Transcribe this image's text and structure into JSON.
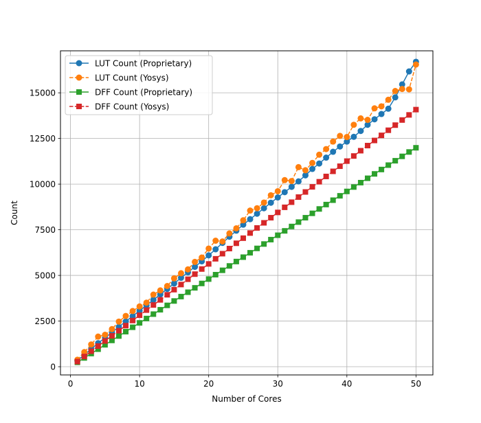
{
  "chart_data": {
    "type": "line",
    "title": "",
    "xlabel": "Number of Cores",
    "ylabel": "Count",
    "xlim": [
      -1.45,
      52.45
    ],
    "ylim": [
      -450,
      17300
    ],
    "xticks": [
      0,
      10,
      20,
      30,
      40,
      50
    ],
    "yticks": [
      0,
      2500,
      5000,
      7500,
      10000,
      12500,
      15000
    ],
    "ytick_labels": [
      "0",
      "2500",
      "5000",
      "7500",
      "10000",
      "12500",
      "15000"
    ],
    "grid": true,
    "legend_position": "top-left",
    "x": [
      1,
      2,
      3,
      4,
      5,
      6,
      7,
      8,
      9,
      10,
      11,
      12,
      13,
      14,
      15,
      16,
      17,
      18,
      19,
      20,
      21,
      22,
      23,
      24,
      25,
      26,
      27,
      28,
      29,
      30,
      31,
      32,
      33,
      34,
      35,
      36,
      37,
      38,
      39,
      40,
      41,
      42,
      43,
      44,
      45,
      46,
      47,
      48,
      49,
      50
    ],
    "series": [
      {
        "name": "LUT Count (Proprietary)",
        "color": "#1f77b4",
        "marker": "circle",
        "linestyle": "solid",
        "values": [
          330,
          650,
          970,
          1290,
          1580,
          1880,
          2180,
          2480,
          2770,
          3070,
          3360,
          3660,
          3960,
          4260,
          4560,
          4870,
          5170,
          5470,
          5770,
          6100,
          6430,
          6780,
          7120,
          7450,
          7780,
          8080,
          8380,
          8680,
          8980,
          9270,
          9560,
          9850,
          10150,
          10480,
          10830,
          11130,
          11450,
          11770,
          12060,
          12330,
          12590,
          12910,
          13250,
          13550,
          13840,
          14130,
          14750,
          15460,
          16170,
          16700
        ]
      },
      {
        "name": "LUT Count (Yosys)",
        "color": "#ff7f0e",
        "marker": "circle",
        "linestyle": "dashed",
        "values": [
          380,
          800,
          1220,
          1650,
          1750,
          2060,
          2470,
          2780,
          3050,
          3300,
          3510,
          3950,
          4180,
          4420,
          4840,
          5120,
          5330,
          5740,
          5980,
          6470,
          6900,
          6860,
          7300,
          7580,
          8020,
          8550,
          8680,
          8990,
          9390,
          9610,
          10220,
          10170,
          10930,
          10760,
          11160,
          11610,
          11920,
          12330,
          12640,
          12580,
          13250,
          13600,
          13520,
          14150,
          14260,
          14620,
          15100,
          15210,
          15190,
          16550
        ]
      },
      {
        "name": "DFF Count (Proprietary)",
        "color": "#2ca02c",
        "marker": "square",
        "linestyle": "solid",
        "values": [
          240,
          480,
          720,
          960,
          1200,
          1440,
          1680,
          1920,
          2160,
          2400,
          2640,
          2880,
          3120,
          3360,
          3600,
          3840,
          4080,
          4320,
          4560,
          4800,
          5040,
          5280,
          5520,
          5760,
          6000,
          6240,
          6480,
          6720,
          6960,
          7200,
          7440,
          7680,
          7920,
          8160,
          8400,
          8640,
          8880,
          9120,
          9360,
          9600,
          9840,
          10080,
          10320,
          10560,
          10800,
          11040,
          11280,
          11520,
          11760,
          11990
        ]
      },
      {
        "name": "DFF Count (Yosys)",
        "color": "#d62728",
        "marker": "square",
        "linestyle": "dashed",
        "values": [
          280,
          560,
          850,
          1130,
          1410,
          1690,
          1970,
          2250,
          2530,
          2820,
          3100,
          3380,
          3660,
          3940,
          4220,
          4500,
          4790,
          5070,
          5350,
          5630,
          5910,
          6190,
          6470,
          6760,
          7040,
          7320,
          7600,
          7880,
          8160,
          8450,
          8730,
          9010,
          9290,
          9570,
          9850,
          10130,
          10420,
          10700,
          10980,
          11260,
          11540,
          11830,
          12110,
          12390,
          12670,
          12950,
          13230,
          13510,
          13790,
          14080
        ]
      }
    ]
  }
}
